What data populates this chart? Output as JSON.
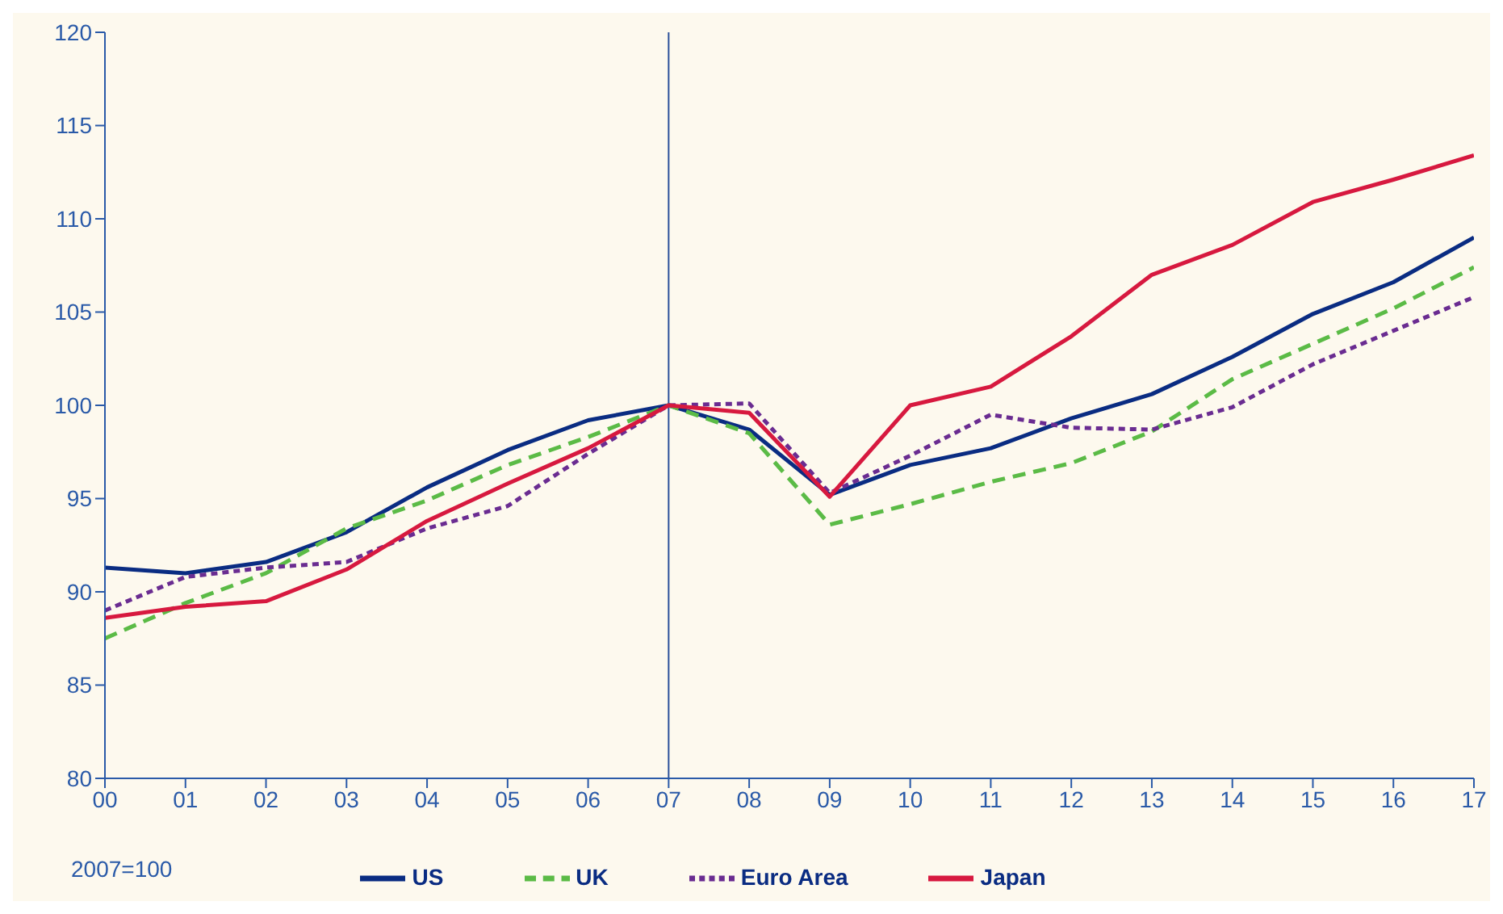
{
  "chart_data": {
    "type": "line",
    "categories": [
      "00",
      "01",
      "02",
      "03",
      "04",
      "05",
      "06",
      "07",
      "08",
      "09",
      "10",
      "11",
      "12",
      "13",
      "14",
      "15",
      "16",
      "17"
    ],
    "ylim": [
      80,
      120
    ],
    "yticks": [
      80,
      85,
      90,
      95,
      100,
      105,
      110,
      115,
      120
    ],
    "grid": false,
    "legend": "bottom",
    "marker": "none",
    "annotations": [
      "2007=100"
    ],
    "ref_lines": [
      {
        "axis": "x",
        "value": "07",
        "color": "#2a4f9a"
      }
    ],
    "series": [
      {
        "name": "US",
        "color": "#0a2c82",
        "line_style": "solid",
        "values": [
          91.3,
          91.0,
          91.6,
          93.2,
          95.6,
          97.6,
          99.2,
          100,
          98.7,
          95.2,
          96.8,
          97.7,
          99.3,
          100.6,
          102.6,
          104.9,
          106.6,
          109.0
        ]
      },
      {
        "name": "UK",
        "color": "#5bbb46",
        "line_style": "dashed",
        "values": [
          87.5,
          89.4,
          91.0,
          93.4,
          94.9,
          96.8,
          98.3,
          100,
          98.5,
          93.6,
          94.7,
          95.9,
          96.9,
          98.6,
          101.4,
          103.3,
          105.2,
          107.4
        ]
      },
      {
        "name": "Euro Area",
        "color": "#6a2c91",
        "line_style": "dotted",
        "values": [
          89.0,
          90.8,
          91.3,
          91.6,
          93.4,
          94.6,
          97.4,
          100,
          100.1,
          95.3,
          97.3,
          99.5,
          98.8,
          98.7,
          99.9,
          102.2,
          104.0,
          105.8
        ]
      },
      {
        "name": "Japan",
        "color": "#d7193f",
        "line_style": "solid",
        "values": [
          88.6,
          89.2,
          89.5,
          91.2,
          93.8,
          95.8,
          97.7,
          100,
          99.6,
          95.1,
          100.0,
          101.0,
          103.7,
          107.0,
          108.6,
          110.9,
          112.1,
          113.4
        ]
      }
    ]
  }
}
